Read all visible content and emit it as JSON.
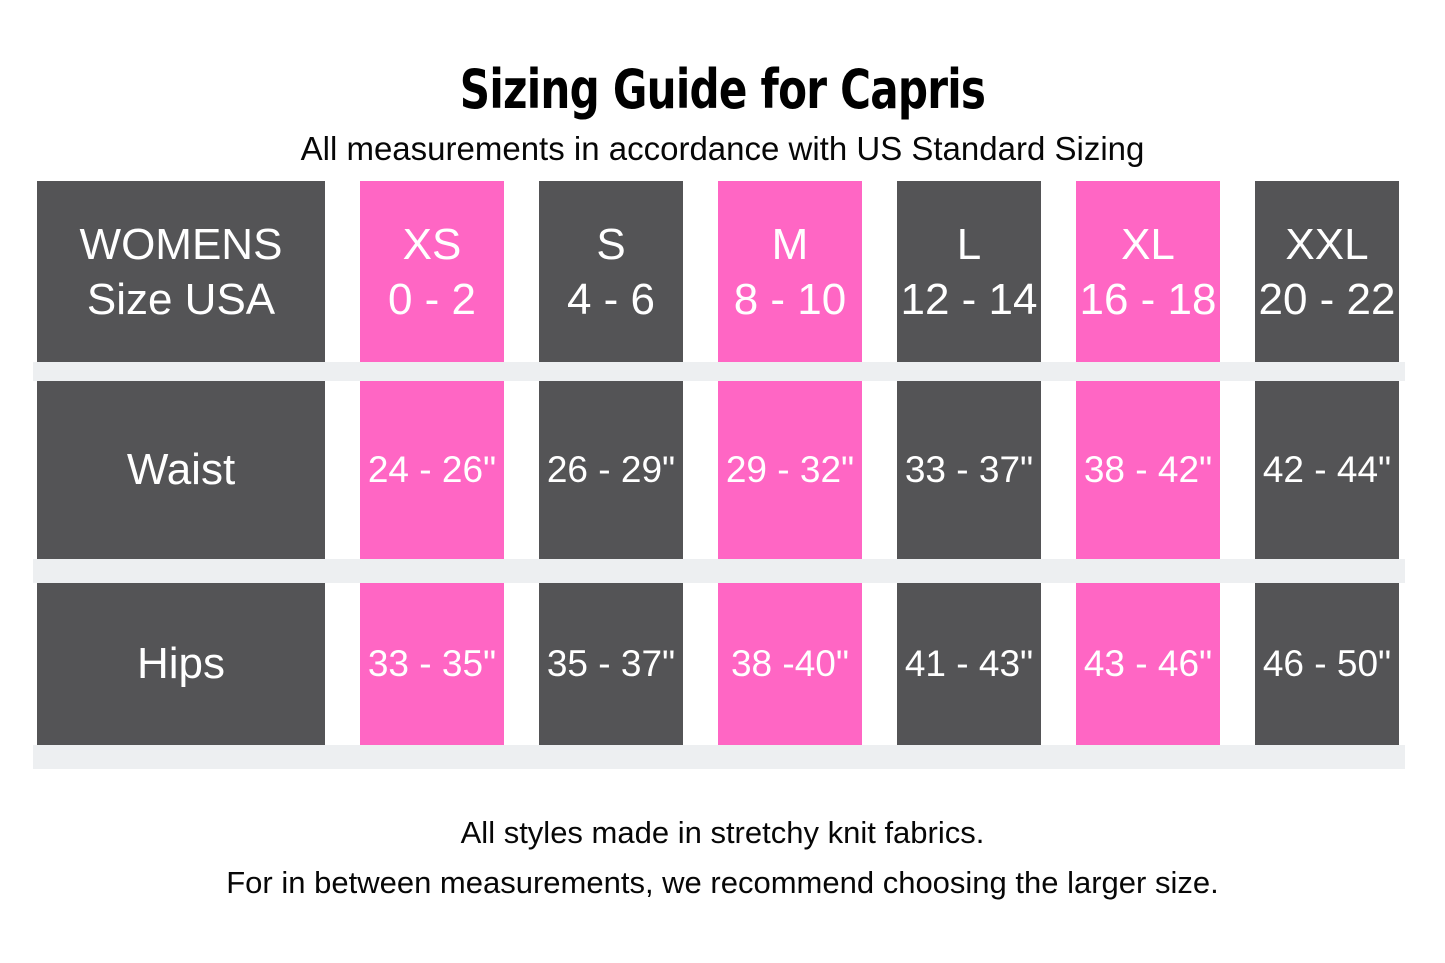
{
  "header": {
    "title": "Sizing Guide for Capris",
    "subtitle": "All measurements in accordance with US Standard Sizing"
  },
  "table": {
    "corner": {
      "line1": "WOMENS",
      "line2": "Size USA"
    },
    "sizes": [
      {
        "name": "XS",
        "range": "0 - 2",
        "highlighted": true
      },
      {
        "name": "S",
        "range": "4 - 6",
        "highlighted": false
      },
      {
        "name": "M",
        "range": "8 - 10",
        "highlighted": true
      },
      {
        "name": "L",
        "range": "12 - 14",
        "highlighted": false
      },
      {
        "name": "XL",
        "range": "16 - 18",
        "highlighted": true
      },
      {
        "name": "XXL",
        "range": "20 - 22",
        "highlighted": false
      }
    ],
    "rows": [
      {
        "label": "Waist",
        "values": [
          "24 - 26\"",
          "26 - 29\"",
          "29 - 32\"",
          "33 - 37\"",
          "38 - 42\"",
          "42 - 44\""
        ]
      },
      {
        "label": "Hips",
        "values": [
          "33 - 35\"",
          "35 - 37\"",
          "38 -40\"",
          "41 - 43\"",
          "43 - 46\"",
          "46 - 50\""
        ]
      }
    ]
  },
  "footer": {
    "line1": "All styles made in stretchy knit fabrics.",
    "line2": "For in between measurements, we recommend choosing the larger size."
  },
  "colors": {
    "background": "#FFFFFF",
    "cell_dark": "#545456",
    "cell_pink": "#FF66C4",
    "row_band": "#EDEFF1",
    "cell_text": "#FFFFFF",
    "text": "#000000"
  },
  "chart_data": {
    "type": "table",
    "title": "Sizing Guide for Capris",
    "subtitle": "All measurements in accordance with US Standard Sizing",
    "columns": [
      "WOMENS Size USA",
      "XS 0 - 2",
      "S 4 - 6",
      "M 8 - 10",
      "L 12 - 14",
      "XL 16 - 18",
      "XXL 20 - 22"
    ],
    "rows": [
      {
        "measurement": "Waist",
        "XS": "24 - 26\"",
        "S": "26 - 29\"",
        "M": "29 - 32\"",
        "L": "33 - 37\"",
        "XL": "38 - 42\"",
        "XXL": "42 - 44\""
      },
      {
        "measurement": "Hips",
        "XS": "33 - 35\"",
        "S": "35 - 37\"",
        "M": "38 -40\"",
        "L": "41 - 43\"",
        "XL": "43 - 46\"",
        "XXL": "46 - 50\""
      }
    ],
    "highlighted_columns": [
      "XS",
      "M",
      "XL"
    ],
    "notes": [
      "All styles made in stretchy knit fabrics.",
      "For in between measurements, we recommend choosing the larger size."
    ]
  }
}
